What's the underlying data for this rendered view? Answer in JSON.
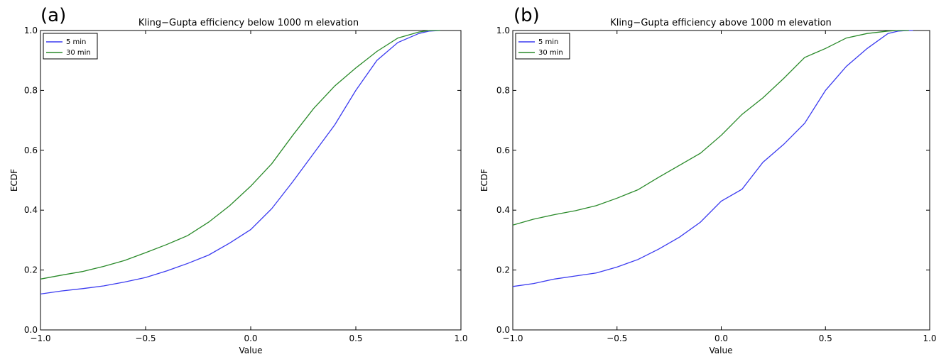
{
  "colors": {
    "five_min": "#3b3bf0",
    "thirty_min": "#2a8a2a"
  },
  "chart_data": [
    {
      "type": "line",
      "panel_label": "(a)",
      "title": "Kling−Gupta efficiency below 1000 m elevation",
      "xlabel": "Value",
      "ylabel": "ECDF",
      "xlim": [
        -1.0,
        1.0
      ],
      "ylim": [
        0.0,
        1.0
      ],
      "xticks": [
        -1.0,
        -0.5,
        0.0,
        0.5,
        1.0
      ],
      "xtick_labels": [
        "−1.0",
        "−0.5",
        "0.0",
        "0.5",
        "1.0"
      ],
      "yticks": [
        0.0,
        0.2,
        0.4,
        0.6,
        0.8,
        1.0
      ],
      "ytick_labels": [
        "0.0",
        "0.2",
        "0.4",
        "0.6",
        "0.8",
        "1.0"
      ],
      "legend_position": "top-left",
      "series": [
        {
          "name": "5 min",
          "color": "#3b3bf0",
          "x": [
            -1.0,
            -0.9,
            -0.8,
            -0.7,
            -0.6,
            -0.5,
            -0.4,
            -0.3,
            -0.2,
            -0.1,
            0.0,
            0.1,
            0.2,
            0.3,
            0.4,
            0.5,
            0.6,
            0.7,
            0.8,
            0.85,
            0.9
          ],
          "y": [
            0.12,
            0.13,
            0.138,
            0.147,
            0.16,
            0.175,
            0.197,
            0.222,
            0.25,
            0.29,
            0.335,
            0.405,
            0.495,
            0.59,
            0.685,
            0.8,
            0.9,
            0.96,
            0.99,
            0.998,
            1.0
          ]
        },
        {
          "name": "30 min",
          "color": "#2a8a2a",
          "x": [
            -1.0,
            -0.9,
            -0.8,
            -0.7,
            -0.6,
            -0.5,
            -0.4,
            -0.3,
            -0.2,
            -0.1,
            0.0,
            0.1,
            0.2,
            0.3,
            0.4,
            0.5,
            0.6,
            0.7,
            0.8,
            0.85,
            0.9
          ],
          "y": [
            0.17,
            0.183,
            0.195,
            0.212,
            0.232,
            0.258,
            0.285,
            0.315,
            0.36,
            0.415,
            0.48,
            0.555,
            0.65,
            0.74,
            0.815,
            0.875,
            0.93,
            0.975,
            0.995,
            1.0,
            1.0
          ]
        }
      ]
    },
    {
      "type": "line",
      "panel_label": "(b)",
      "title": "Kling−Gupta efficiency above 1000 m elevation",
      "xlabel": "Value",
      "ylabel": "ECDF",
      "xlim": [
        -1.0,
        1.0
      ],
      "ylim": [
        0.0,
        1.0
      ],
      "xticks": [
        -1.0,
        -0.5,
        0.0,
        0.5,
        1.0
      ],
      "xtick_labels": [
        "−1.0",
        "−0.5",
        "0.0",
        "0.5",
        "1.0"
      ],
      "yticks": [
        0.0,
        0.2,
        0.4,
        0.6,
        0.8,
        1.0
      ],
      "ytick_labels": [
        "0.0",
        "0.2",
        "0.4",
        "0.6",
        "0.8",
        "1.0"
      ],
      "legend_position": "top-left",
      "series": [
        {
          "name": "5 min",
          "color": "#3b3bf0",
          "x": [
            -1.0,
            -0.9,
            -0.8,
            -0.7,
            -0.6,
            -0.5,
            -0.4,
            -0.3,
            -0.2,
            -0.1,
            0.0,
            0.1,
            0.2,
            0.3,
            0.4,
            0.5,
            0.6,
            0.7,
            0.8,
            0.85,
            0.9,
            0.92
          ],
          "y": [
            0.145,
            0.155,
            0.17,
            0.18,
            0.19,
            0.21,
            0.235,
            0.27,
            0.31,
            0.36,
            0.43,
            0.47,
            0.56,
            0.62,
            0.69,
            0.8,
            0.88,
            0.94,
            0.99,
            0.998,
            1.0,
            1.0
          ]
        },
        {
          "name": "30 min",
          "color": "#2a8a2a",
          "x": [
            -1.0,
            -0.9,
            -0.8,
            -0.7,
            -0.6,
            -0.5,
            -0.4,
            -0.3,
            -0.2,
            -0.1,
            0.0,
            0.1,
            0.2,
            0.3,
            0.4,
            0.5,
            0.6,
            0.7,
            0.8,
            0.85,
            0.9
          ],
          "y": [
            0.35,
            0.37,
            0.385,
            0.398,
            0.415,
            0.44,
            0.468,
            0.51,
            0.55,
            0.59,
            0.65,
            0.72,
            0.775,
            0.84,
            0.91,
            0.94,
            0.975,
            0.99,
            0.998,
            1.0,
            1.0
          ]
        }
      ]
    }
  ]
}
